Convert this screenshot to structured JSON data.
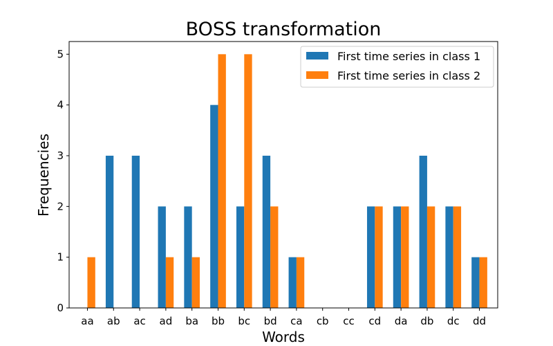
{
  "chart_data": {
    "type": "bar",
    "title": "BOSS transformation",
    "xlabel": "Words",
    "ylabel": "Frequencies",
    "categories": [
      "aa",
      "ab",
      "ac",
      "ad",
      "ba",
      "bb",
      "bc",
      "bd",
      "ca",
      "cb",
      "cc",
      "cd",
      "da",
      "db",
      "dc",
      "dd"
    ],
    "series": [
      {
        "name": "First time series in class 1",
        "color": "#1f77b4",
        "values": [
          0,
          3,
          3,
          2,
          2,
          4,
          2,
          3,
          1,
          0,
          0,
          2,
          2,
          3,
          2,
          1
        ]
      },
      {
        "name": "First time series in class 2",
        "color": "#ff7f0e",
        "values": [
          1,
          0,
          0,
          1,
          1,
          5,
          5,
          2,
          1,
          0,
          0,
          2,
          2,
          2,
          2,
          1
        ]
      }
    ],
    "ylim": [
      0,
      5.25
    ],
    "yticks": [
      0,
      1,
      2,
      3,
      4,
      5
    ],
    "grid": false,
    "legend_position": "top-right"
  }
}
